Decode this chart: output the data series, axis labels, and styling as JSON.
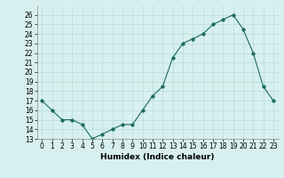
{
  "x": [
    0,
    1,
    2,
    3,
    4,
    5,
    6,
    7,
    8,
    9,
    10,
    11,
    12,
    13,
    14,
    15,
    16,
    17,
    18,
    19,
    20,
    21,
    22,
    23
  ],
  "y": [
    17,
    16,
    15,
    15,
    14.5,
    13,
    13.5,
    14,
    14.5,
    14.5,
    16,
    17.5,
    18.5,
    21.5,
    23,
    23.5,
    24,
    25,
    25.5,
    26,
    24.5,
    22,
    18.5,
    17
  ],
  "xlabel": "Humidex (Indice chaleur)",
  "xlim": [
    -0.5,
    23.5
  ],
  "ylim": [
    13,
    27
  ],
  "yticks": [
    13,
    14,
    15,
    16,
    17,
    18,
    19,
    20,
    21,
    22,
    23,
    24,
    25,
    26
  ],
  "xticks": [
    0,
    1,
    2,
    3,
    4,
    5,
    6,
    7,
    8,
    9,
    10,
    11,
    12,
    13,
    14,
    15,
    16,
    17,
    18,
    19,
    20,
    21,
    22,
    23
  ],
  "line_color": "#1a6b5a",
  "marker_size": 2.5,
  "bg_color": "#d7f0ef",
  "grid_color": "#b8dbd9",
  "fig_bg": "#d7f0ef",
  "tick_fontsize": 5.5,
  "xlabel_fontsize": 6.5
}
